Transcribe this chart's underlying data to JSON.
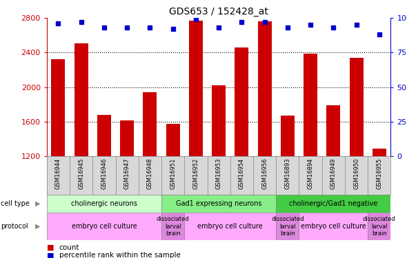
{
  "title": "GDS653 / 152428_at",
  "samples": [
    "GSM16944",
    "GSM16945",
    "GSM16946",
    "GSM16947",
    "GSM16948",
    "GSM16951",
    "GSM16952",
    "GSM16953",
    "GSM16954",
    "GSM16956",
    "GSM16893",
    "GSM16894",
    "GSM16949",
    "GSM16950",
    "GSM16955"
  ],
  "counts": [
    2320,
    2510,
    1680,
    1610,
    1940,
    1570,
    2770,
    2020,
    2460,
    2760,
    1670,
    2390,
    1790,
    2340,
    1290
  ],
  "percentiles": [
    96,
    97,
    93,
    93,
    93,
    92,
    99,
    93,
    97,
    97,
    93,
    95,
    93,
    95,
    88
  ],
  "ylim_left": [
    1200,
    2800
  ],
  "ylim_right": [
    0,
    100
  ],
  "yticks_left": [
    1200,
    1600,
    2000,
    2400,
    2800
  ],
  "yticks_right": [
    0,
    25,
    50,
    75,
    100
  ],
  "bar_color": "#cc0000",
  "dot_color": "#0000cc",
  "cell_type_groups": [
    {
      "label": "cholinergic neurons",
      "start": 0,
      "end": 5,
      "color": "#ccffcc"
    },
    {
      "label": "Gad1 expressing neurons",
      "start": 5,
      "end": 10,
      "color": "#88ee88"
    },
    {
      "label": "cholinergic/Gad1 negative",
      "start": 10,
      "end": 15,
      "color": "#44cc44"
    }
  ],
  "protocol_groups": [
    {
      "label": "embryo cell culture",
      "start": 0,
      "end": 5,
      "color": "#ffaaff",
      "small": false
    },
    {
      "label": "dissociated\nlarval\nbrain",
      "start": 5,
      "end": 6,
      "color": "#dd88dd",
      "small": true
    },
    {
      "label": "embryo cell culture",
      "start": 6,
      "end": 10,
      "color": "#ffaaff",
      "small": false
    },
    {
      "label": "dissociated\nlarval\nbrain",
      "start": 10,
      "end": 11,
      "color": "#dd88dd",
      "small": true
    },
    {
      "label": "embryo cell culture",
      "start": 11,
      "end": 14,
      "color": "#ffaaff",
      "small": false
    },
    {
      "label": "dissociated\nlarval\nbrain",
      "start": 14,
      "end": 15,
      "color": "#dd88dd",
      "small": true
    }
  ]
}
